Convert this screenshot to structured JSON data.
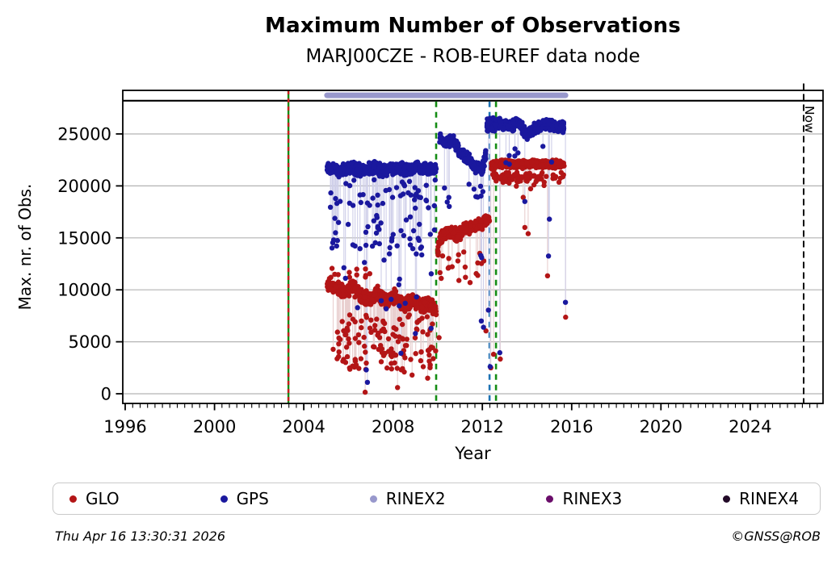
{
  "chart_data": {
    "type": "scatter",
    "title": "Maximum Number of Observations",
    "subtitle": "MARJ00CZE - ROB-EUREF data node",
    "xlabel": "Year",
    "ylabel": "Max. nr. of Obs.",
    "xlim": [
      1995.89,
      2027.26
    ],
    "ylim": [
      -930,
      29190
    ],
    "xticks": [
      1996,
      2000,
      2004,
      2008,
      2012,
      2016,
      2020,
      2024
    ],
    "yticks": [
      0,
      5000,
      10000,
      15000,
      20000,
      25000
    ],
    "minor_tick_step_years": 0.3333,
    "grid": "horizontal-only",
    "legend_position": "bottom",
    "colors": {
      "grid": "#b3b3b3",
      "frame": "#000000",
      "glo": "#b31516",
      "gps": "#1a189e",
      "glo_stem": "#e9cfcf",
      "gps_stem": "#cfcfe9",
      "green_line": "#148c14",
      "red_dash": "#c81e1e",
      "blue_line": "#1e73b4",
      "rinex2": "#9898cc",
      "rinex3": "#6a0d6a",
      "rinex4": "#220a28"
    },
    "ceiling_line": {
      "y": 28200,
      "color": "#000000"
    },
    "rinex2_bar": {
      "x0": 2005.04,
      "x1": 2015.72,
      "y": 28720,
      "color": "#9898cc"
    },
    "event_lines": [
      {
        "x": 2003.31,
        "color": "#148c14",
        "dash": "",
        "width": 2.4,
        "full": true,
        "overlay": {
          "color": "#c81e1e",
          "dash": "5 5",
          "width": 2.4
        }
      },
      {
        "x": 2009.93,
        "color": "#148c14",
        "dash": "7 6",
        "width": 2.6,
        "full": false
      },
      {
        "x": 2012.32,
        "color": "#1e73b4",
        "dash": "7 6",
        "width": 2.6,
        "full": false
      },
      {
        "x": 2012.61,
        "color": "#148c14",
        "dash": "7 6",
        "width": 2.6,
        "full": false
      }
    ],
    "now_line": {
      "x": 2026.39,
      "color": "#000000",
      "dash": "8 5",
      "width": 2,
      "label": "Now"
    },
    "legend": [
      {
        "label": "GLO",
        "color": "#b31516"
      },
      {
        "label": "GPS",
        "color": "#1a189e"
      },
      {
        "label": "RINEX2",
        "color": "#9898cc"
      },
      {
        "label": "RINEX3",
        "color": "#6a0d6a"
      },
      {
        "label": "RINEX4",
        "color": "#220a28"
      }
    ],
    "series": [
      {
        "name": "GLO",
        "color": "#b31516",
        "stem_color": "#e9cfcf",
        "segments": [
          {
            "x0": 2005.04,
            "x1": 2009.93,
            "n": 600,
            "spread": 800,
            "path": [
              [
                2005.04,
                10400
              ],
              [
                2005.5,
                10100
              ],
              [
                2005.9,
                9700
              ],
              [
                2006.2,
                10300
              ],
              [
                2006.6,
                9300
              ],
              [
                2007.0,
                9000
              ],
              [
                2007.35,
                9700
              ],
              [
                2007.7,
                8800
              ],
              [
                2008.1,
                9400
              ],
              [
                2008.5,
                8500
              ],
              [
                2008.9,
                9000
              ],
              [
                2009.3,
                8300
              ],
              [
                2009.6,
                8800
              ],
              [
                2009.93,
                8000
              ]
            ]
          },
          {
            "x0": 2010.0,
            "x1": 2012.32,
            "n": 300,
            "spread": 700,
            "path": [
              [
                2010.0,
                13600
              ],
              [
                2010.12,
                15100
              ],
              [
                2010.5,
                15600
              ],
              [
                2010.9,
                15200
              ],
              [
                2011.2,
                15900
              ],
              [
                2011.6,
                16100
              ],
              [
                2012.0,
                16400
              ],
              [
                2012.32,
                16600
              ]
            ]
          },
          {
            "x0": 2012.4,
            "x1": 2015.66,
            "n": 380,
            "spread": 450,
            "path": [
              [
                2012.4,
                22000
              ],
              [
                2013.0,
                22150
              ],
              [
                2013.6,
                22050
              ],
              [
                2014.2,
                22150
              ],
              [
                2014.8,
                22050
              ],
              [
                2015.66,
                22100
              ]
            ]
          },
          {
            "x0": 2012.45,
            "x1": 2015.66,
            "n": 70,
            "spread": 600,
            "path": [
              [
                2012.45,
                20900
              ],
              [
                2015.66,
                20900
              ]
            ]
          }
        ],
        "random_outliers": [
          {
            "x0": 2005.3,
            "x1": 2009.93,
            "n": 130,
            "ymin": 2300,
            "ymax": 7600
          },
          {
            "x0": 2005.1,
            "x1": 2007.0,
            "n": 12,
            "ymin": 11200,
            "ymax": 12300
          },
          {
            "x0": 2010.05,
            "x1": 2012.3,
            "n": 18,
            "ymin": 11000,
            "ymax": 13900
          },
          {
            "x0": 2012.45,
            "x1": 2015.6,
            "n": 14,
            "ymin": 19500,
            "ymax": 21200
          }
        ],
        "outliers": [
          [
            2006.75,
            150
          ],
          [
            2006.8,
            2950
          ],
          [
            2008.2,
            600
          ],
          [
            2008.5,
            2100
          ],
          [
            2008.85,
            1800
          ],
          [
            2009.35,
            2600
          ],
          [
            2009.55,
            1500
          ],
          [
            2010.06,
            5400
          ],
          [
            2010.95,
            10900
          ],
          [
            2011.45,
            10700
          ],
          [
            2012.16,
            6050
          ],
          [
            2012.38,
            2500
          ],
          [
            2012.5,
            3800
          ],
          [
            2012.8,
            3340
          ],
          [
            2013.83,
            18900
          ],
          [
            2013.9,
            16000
          ],
          [
            2014.05,
            15400
          ],
          [
            2014.92,
            11350
          ],
          [
            2015.73,
            7370
          ]
        ]
      },
      {
        "name": "GPS",
        "color": "#1a189e",
        "stem_color": "#cfcfe9",
        "segments": [
          {
            "x0": 2005.04,
            "x1": 2009.93,
            "n": 520,
            "spread": 700,
            "path": [
              [
                2005.04,
                21700
              ],
              [
                2005.6,
                21500
              ],
              [
                2006.1,
                21800
              ],
              [
                2006.6,
                21500
              ],
              [
                2007.1,
                21750
              ],
              [
                2007.6,
                21450
              ],
              [
                2008.1,
                21700
              ],
              [
                2008.6,
                21500
              ],
              [
                2009.1,
                21750
              ],
              [
                2009.93,
                21600
              ]
            ]
          },
          {
            "x0": 2010.08,
            "x1": 2012.2,
            "n": 250,
            "spread": 650,
            "path": [
              [
                2010.08,
                24600
              ],
              [
                2010.4,
                24100
              ],
              [
                2010.7,
                24400
              ],
              [
                2011.0,
                23300
              ],
              [
                2011.3,
                22700
              ],
              [
                2011.6,
                22100
              ],
              [
                2011.9,
                21400
              ],
              [
                2012.05,
                22000
              ],
              [
                2012.2,
                23400
              ]
            ]
          },
          {
            "x0": 2012.2,
            "x1": 2012.55,
            "n": 90,
            "spread": 800,
            "path": [
              [
                2012.2,
                25700
              ],
              [
                2012.55,
                25900
              ]
            ]
          },
          {
            "x0": 2012.55,
            "x1": 2015.66,
            "n": 420,
            "spread": 620,
            "path": [
              [
                2012.55,
                26100
              ],
              [
                2013.2,
                25700
              ],
              [
                2013.6,
                26100
              ],
              [
                2014.0,
                24900
              ],
              [
                2014.4,
                25600
              ],
              [
                2014.8,
                26000
              ],
              [
                2015.2,
                25800
              ],
              [
                2015.66,
                25600
              ]
            ]
          }
        ],
        "random_outliers": [
          {
            "x0": 2005.1,
            "x1": 2009.9,
            "n": 95,
            "ymin": 13200,
            "ymax": 20600
          },
          {
            "x0": 2005.5,
            "x1": 2009.9,
            "n": 14,
            "ymin": 8000,
            "ymax": 13000
          },
          {
            "x0": 2010.2,
            "x1": 2012.15,
            "n": 10,
            "ymin": 17500,
            "ymax": 20800
          },
          {
            "x0": 2012.6,
            "x1": 2015.5,
            "n": 8,
            "ymin": 21500,
            "ymax": 24000
          }
        ],
        "outliers": [
          [
            2006.8,
            2300
          ],
          [
            2006.85,
            1100
          ],
          [
            2008.35,
            3900
          ],
          [
            2009.0,
            5800
          ],
          [
            2009.7,
            6300
          ],
          [
            2010.3,
            19800
          ],
          [
            2011.93,
            13300
          ],
          [
            2011.97,
            13100
          ],
          [
            2011.95,
            7000
          ],
          [
            2012.05,
            6400
          ],
          [
            2012.27,
            8050
          ],
          [
            2012.35,
            2600
          ],
          [
            2012.78,
            3950
          ],
          [
            2013.9,
            18500
          ],
          [
            2014.96,
            13250
          ],
          [
            2015.0,
            16800
          ],
          [
            2015.72,
            8800
          ]
        ]
      }
    ]
  },
  "footer": {
    "timestamp": "Thu Apr 16 13:30:31 2026",
    "credit": "©GNSS@ROB"
  }
}
